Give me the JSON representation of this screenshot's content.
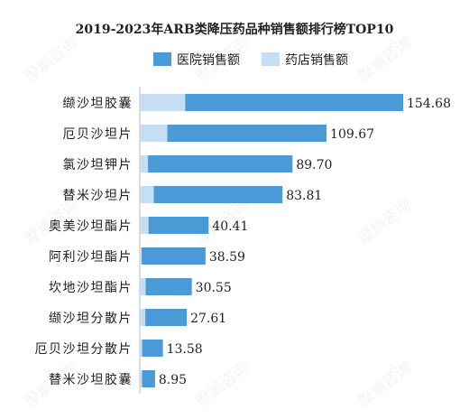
{
  "chart_data": {
    "type": "bar",
    "orientation": "horizontal",
    "stacked": true,
    "title": "2019-2023年ARB类降压药品种销售额排行榜TOP10",
    "categories": [
      "缬沙坦胶囊",
      "厄贝沙坦片",
      "氯沙坦钾片",
      "替米沙坦片",
      "奥美沙坦酯片",
      "阿利沙坦酯片",
      "坎地沙坦酯片",
      "缬沙坦分散片",
      "厄贝沙坦分散片",
      "替米沙坦胶囊"
    ],
    "totals": [
      154.68,
      109.67,
      89.7,
      83.81,
      40.41,
      38.59,
      30.55,
      27.61,
      13.58,
      8.95
    ],
    "series": [
      {
        "name": "医院销售额",
        "color": "#4a9ad8",
        "values": [
          128.0,
          93.5,
          84.9,
          75.6,
          35.3,
          37.5,
          27.1,
          24.4,
          12.2,
          7.6
        ]
      },
      {
        "name": "药店销售额",
        "color": "#c6def3",
        "values": [
          26.68,
          16.17,
          4.8,
          8.21,
          5.11,
          1.09,
          3.45,
          3.21,
          1.38,
          1.35
        ]
      }
    ],
    "xlim": [
      0,
      160
    ],
    "legend_position": "top-center",
    "grid": false
  },
  "watermark": "摩熵咨询"
}
